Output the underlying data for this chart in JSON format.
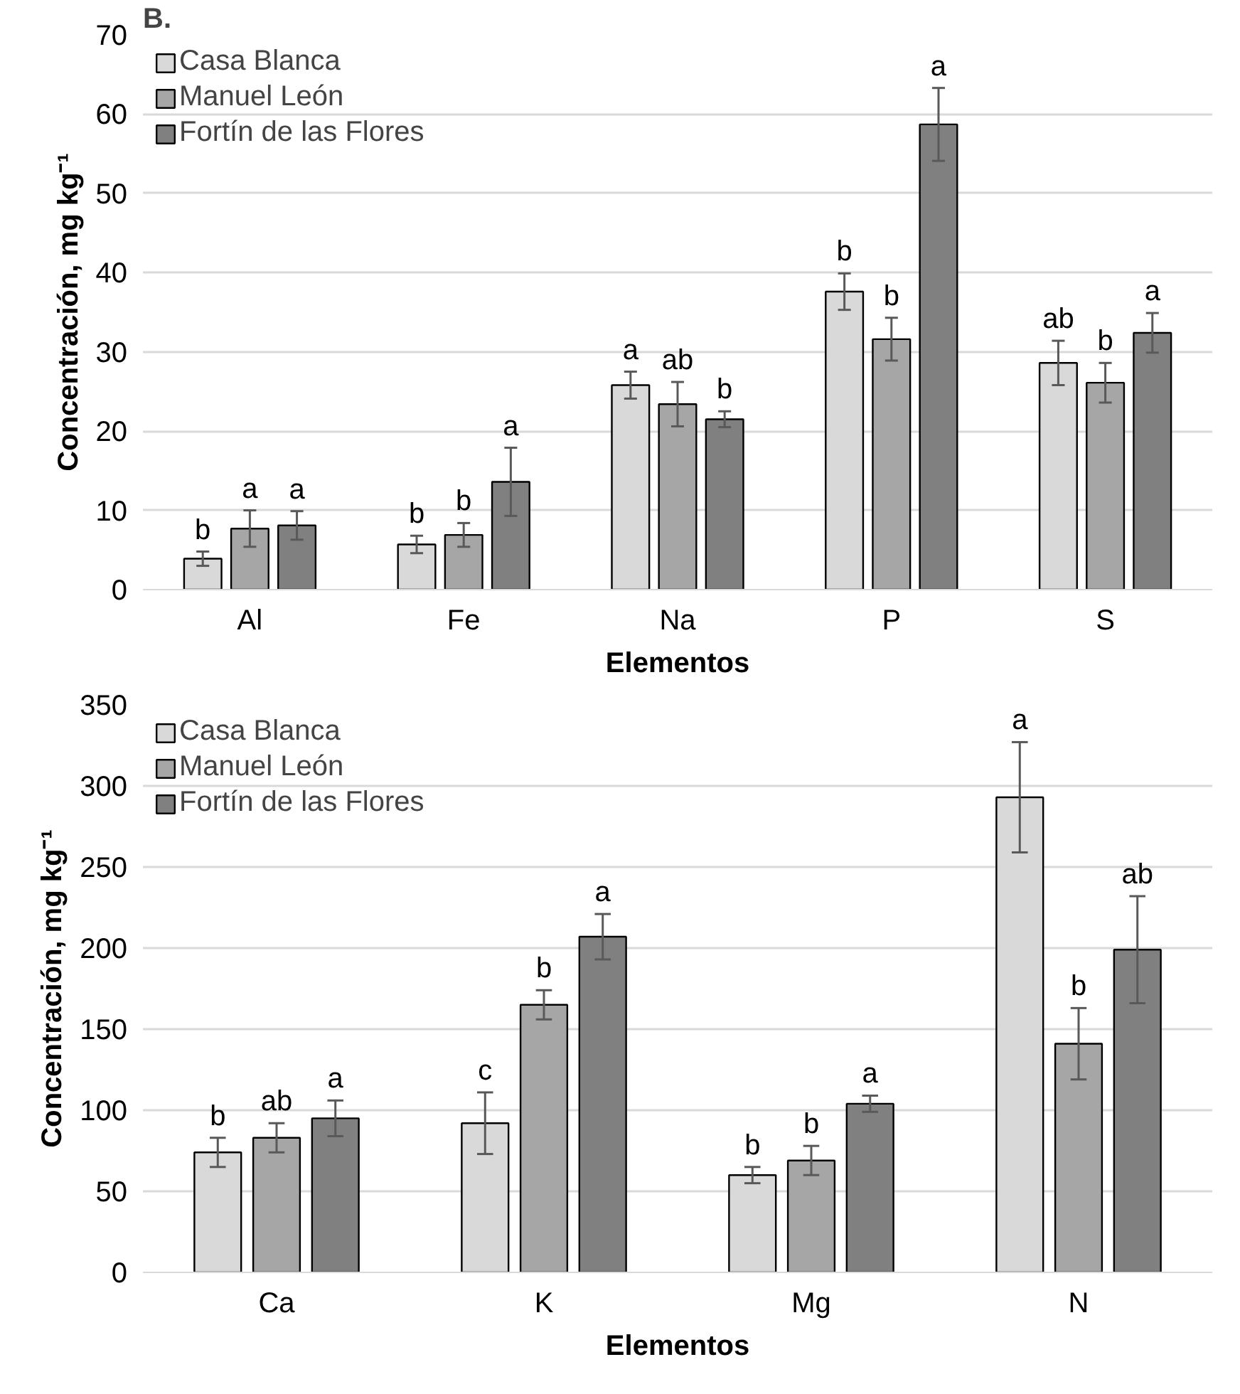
{
  "chart_data": [
    {
      "type": "bar",
      "annotations": [
        "B."
      ],
      "xlabel": "Elementos",
      "ylabel": "Concentración, mg kg⁻¹",
      "categories": [
        "Al",
        "Fe",
        "Na",
        "P",
        "S"
      ],
      "ylim": [
        0,
        70
      ],
      "yticks": [
        0,
        10,
        20,
        30,
        40,
        50,
        60,
        70
      ],
      "grid": "y",
      "legend": "top left",
      "series": [
        {
          "name": "Casa Blanca",
          "color": "#d9d9d9",
          "values": [
            3.9,
            5.7,
            25.8,
            37.6,
            28.6
          ],
          "errors": [
            0.9,
            1.1,
            1.7,
            2.3,
            2.8
          ],
          "value_labels": [
            "b",
            "b",
            "a",
            "b",
            "ab"
          ]
        },
        {
          "name": "Manuel León",
          "color": "#a6a6a6",
          "values": [
            7.7,
            6.9,
            23.4,
            31.6,
            26.1
          ],
          "errors": [
            2.3,
            1.5,
            2.8,
            2.7,
            2.5
          ],
          "value_labels": [
            "a",
            "b",
            "ab",
            "b",
            "b"
          ]
        },
        {
          "name": "Fortín de las Flores",
          "color": "#808080",
          "values": [
            8.1,
            13.6,
            21.5,
            58.7,
            32.4
          ],
          "errors": [
            1.8,
            4.3,
            1.0,
            4.6,
            2.5
          ],
          "value_labels": [
            "a",
            "a",
            "b",
            "a",
            "a"
          ]
        }
      ]
    },
    {
      "type": "bar",
      "xlabel": "Elementos",
      "ylabel": "Concentración, mg kg⁻¹",
      "categories": [
        "Ca",
        "K",
        "Mg",
        "N"
      ],
      "ylim": [
        0,
        350
      ],
      "yticks": [
        0,
        50,
        100,
        150,
        200,
        250,
        300,
        350
      ],
      "grid": "y",
      "legend": "top left",
      "series": [
        {
          "name": "Casa Blanca",
          "color": "#d9d9d9",
          "values": [
            74,
            92,
            60,
            293
          ],
          "errors": [
            9,
            19,
            5,
            34
          ],
          "value_labels": [
            "b",
            "c",
            "b",
            "a"
          ]
        },
        {
          "name": "Manuel León",
          "color": "#a6a6a6",
          "values": [
            83,
            165,
            69,
            141
          ],
          "errors": [
            9,
            9,
            9,
            22
          ],
          "value_labels": [
            "ab",
            "b",
            "b",
            "b"
          ]
        },
        {
          "name": "Fortín de las Flores",
          "color": "#808080",
          "values": [
            95,
            207,
            104,
            199
          ],
          "errors": [
            11,
            14,
            5,
            33
          ],
          "value_labels": [
            "a",
            "a",
            "a",
            "ab"
          ]
        }
      ]
    }
  ]
}
